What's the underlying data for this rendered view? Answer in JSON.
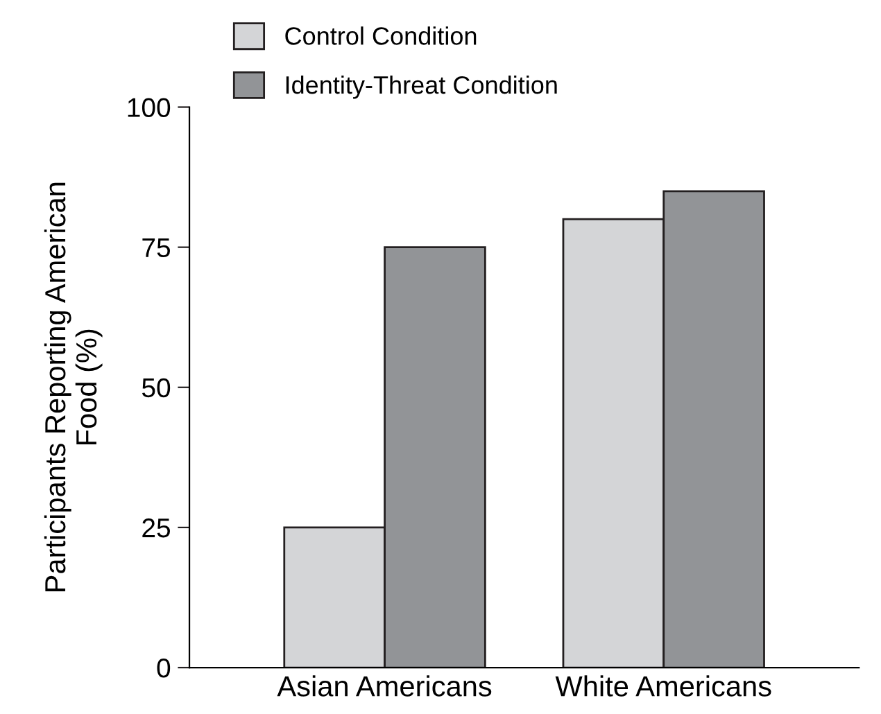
{
  "chart_data": {
    "type": "bar",
    "ylabel": "Participants Reporting American Food (%)",
    "categories": [
      "Asian Americans",
      "White Americans"
    ],
    "series": [
      {
        "name": "Control Condition",
        "color": "#d4d5d7",
        "values": [
          25,
          80
        ]
      },
      {
        "name": "Identity-Threat Condition",
        "color": "#929497",
        "values": [
          75,
          85
        ]
      }
    ],
    "ylim": [
      0,
      100
    ],
    "yticks": [
      0,
      25,
      50,
      75,
      100
    ],
    "grid": false,
    "legend": "top"
  }
}
